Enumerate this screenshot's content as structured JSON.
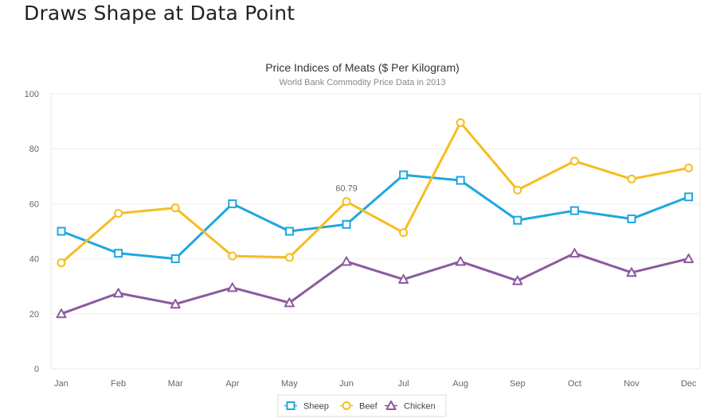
{
  "page": {
    "heading": "Draws Shape at Data Point"
  },
  "chart_data": {
    "type": "line",
    "title": "Price Indices of Meats ($ Per Kilogram)",
    "subtitle": "World Bank Commodity Price Data in 2013",
    "xlabel": "",
    "ylabel": "",
    "ylim": [
      0,
      100
    ],
    "yticks": [
      0,
      20,
      40,
      60,
      80,
      100
    ],
    "grid": true,
    "legend_position": "bottom-center",
    "categories": [
      "Jan",
      "Feb",
      "Mar",
      "Apr",
      "May",
      "Jun",
      "Jul",
      "Aug",
      "Sep",
      "Oct",
      "Nov",
      "Dec"
    ],
    "series": [
      {
        "name": "Sheep",
        "marker": "square",
        "color": "#1ea7e1",
        "values": [
          50,
          42,
          40,
          60,
          50,
          52.5,
          70.5,
          68.5,
          54,
          57.5,
          54.5,
          62.5
        ]
      },
      {
        "name": "Beef",
        "marker": "circle",
        "color": "#f5bd1f",
        "values": [
          38.5,
          56.5,
          58.5,
          41,
          40.5,
          60.79,
          49.5,
          89.5,
          65,
          75.5,
          69,
          73
        ]
      },
      {
        "name": "Chicken",
        "marker": "triangle",
        "color": "#8b5a9e",
        "values": [
          20,
          27.5,
          23.5,
          29.5,
          24,
          39,
          32.5,
          39,
          32,
          42,
          35,
          40
        ]
      }
    ],
    "annotations": [
      {
        "series": "Beef",
        "category": "Jun",
        "text": "60.79"
      }
    ]
  }
}
